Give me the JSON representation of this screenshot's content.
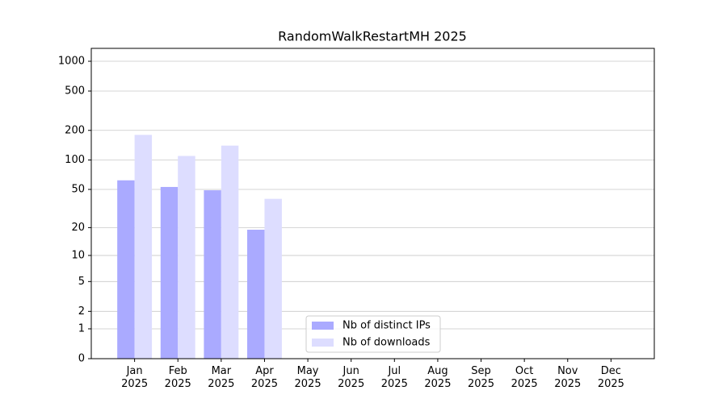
{
  "chart_data": {
    "type": "bar",
    "title": "RandomWalkRestartMH 2025",
    "categories": [
      "Jan\n2025",
      "Feb\n2025",
      "Mar\n2025",
      "Apr\n2025",
      "May\n2025",
      "Jun\n2025",
      "Jul\n2025",
      "Aug\n2025",
      "Sep\n2025",
      "Oct\n2025",
      "Nov\n2025",
      "Dec\n2025"
    ],
    "series": [
      {
        "name": "Nb of distinct IPs",
        "color": "#aaaaff",
        "values": [
          62,
          53,
          49,
          19,
          null,
          null,
          null,
          null,
          null,
          null,
          null,
          null
        ]
      },
      {
        "name": "Nb of downloads",
        "color": "#ddddff",
        "values": [
          180,
          110,
          140,
          40,
          null,
          null,
          null,
          null,
          null,
          null,
          null,
          null
        ]
      }
    ],
    "yscale": "symlog",
    "ylim": [
      0,
      1350
    ],
    "yticks": [
      0,
      1,
      2,
      5,
      10,
      20,
      50,
      100,
      200,
      500,
      1000
    ],
    "grid": true,
    "legend": "lower center"
  }
}
